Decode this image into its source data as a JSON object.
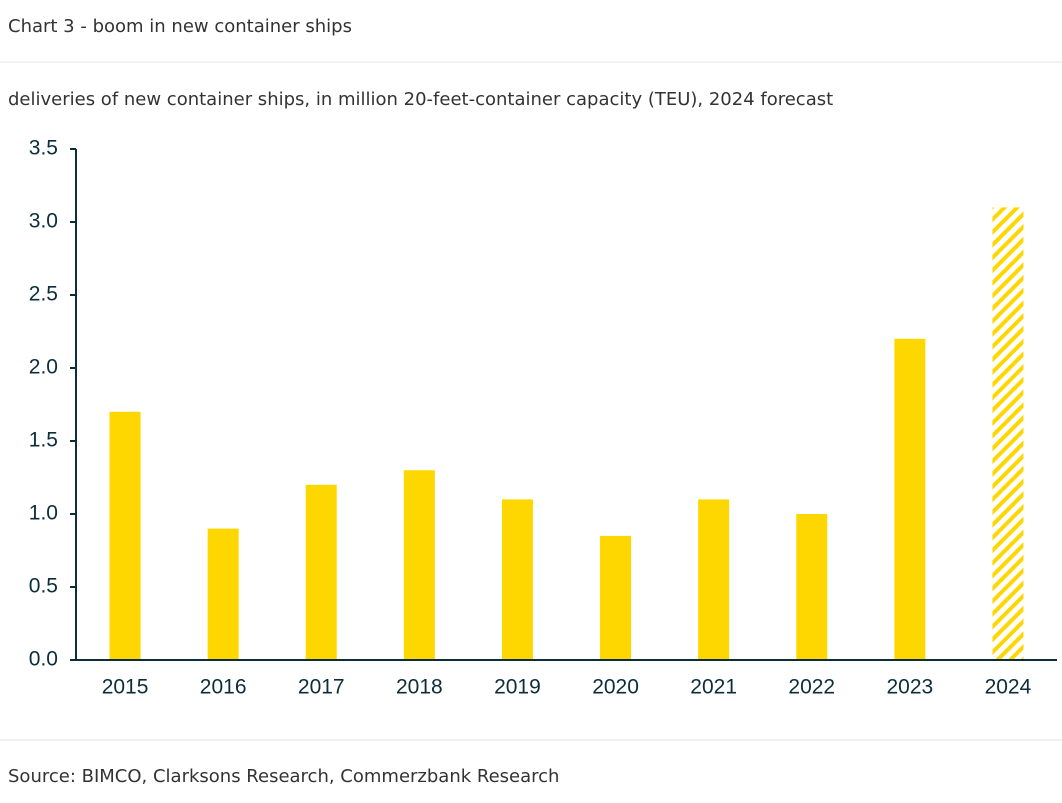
{
  "header": {
    "title": "Chart 3 - boom in new container ships"
  },
  "chart_data": {
    "type": "bar",
    "title": "deliveries of new container ships, in million 20-feet-container capacity (TEU), 2024 forecast",
    "categories": [
      "2015",
      "2016",
      "2017",
      "2018",
      "2019",
      "2020",
      "2021",
      "2022",
      "2023",
      "2024"
    ],
    "values": [
      1.7,
      0.9,
      1.2,
      1.3,
      1.1,
      0.85,
      1.1,
      1.0,
      2.2,
      3.1
    ],
    "hatched": [
      false,
      false,
      false,
      false,
      false,
      false,
      false,
      false,
      false,
      true
    ],
    "color": "#ffd700",
    "ylim": [
      0,
      3.5
    ],
    "yticks": [
      {
        "value": 0,
        "label": "0.0"
      },
      0.5,
      {
        "value": 1,
        "label": "1.0"
      },
      1.5,
      {
        "value": 2,
        "label": "2.0"
      },
      2.5,
      {
        "value": 3,
        "label": "3.0"
      },
      3.5
    ],
    "grid": false
  },
  "footer": {
    "source": "Source: BIMCO, Clarksons Research, Commerzbank Research"
  }
}
